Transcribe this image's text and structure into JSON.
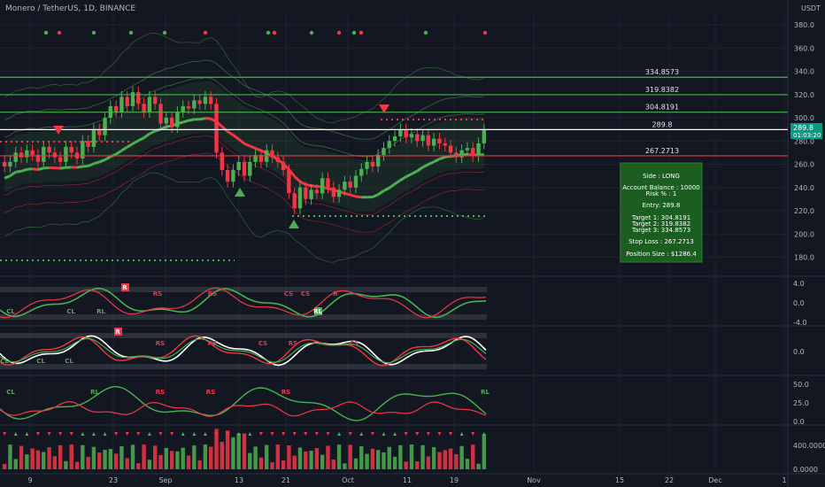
{
  "header": {
    "symbol_line": "Monero / TetherUS, 1D, BINANCE",
    "currency": "USDT"
  },
  "price_axis": {
    "ticks": [
      "380.0",
      "360.0",
      "340.0",
      "320.0",
      "300.0",
      "280.0",
      "260.0",
      "240.0",
      "220.0",
      "200.0",
      "180.0"
    ],
    "tick_values": [
      380,
      360,
      340,
      320,
      300,
      280,
      260,
      240,
      220,
      200,
      180
    ],
    "last_price": "289.8",
    "countdown": "01:03:20"
  },
  "time_axis": {
    "labels": [
      "9",
      "23",
      "Sep",
      "13",
      "21",
      "Oct",
      "11",
      "19",
      "Nov",
      "15",
      "22",
      "Dec",
      "1"
    ]
  },
  "levels": [
    {
      "label": "334.8573",
      "value": 334.8573,
      "color": "#4caf50"
    },
    {
      "label": "319.8382",
      "value": 319.8382,
      "color": "#4caf50"
    },
    {
      "label": "304.8191",
      "value": 304.8191,
      "color": "#4caf50"
    },
    {
      "label": "289.8",
      "value": 289.8,
      "color": "#ffffff"
    },
    {
      "label": "267.2713",
      "value": 267.2713,
      "color": "#f23645"
    }
  ],
  "info_box": {
    "side": "Side : LONG",
    "balance": "Account Balance : 10000",
    "risk": "Risk % : 1",
    "entry": "Entry: 289.8",
    "t1": "Target 1: 304.8191",
    "t2": "Target 2: 319.8382",
    "t3": "Target 3: 334.8573",
    "stop": "Stop Loss : 267.2713",
    "size": "Position Size : $1286.4"
  },
  "osc1_axis": [
    "4.0",
    "0.0",
    "-4.0"
  ],
  "osc2_axis": [
    "0.0"
  ],
  "osc3_axis": [
    "50.0",
    "25.0",
    "0.0"
  ],
  "vol_axis": [
    "400.0000",
    "0.0000"
  ],
  "signal_labels": {
    "osc1": [
      "CL",
      "CL",
      "RL",
      "R",
      "RS",
      "RS",
      "CS",
      "CS",
      "R",
      "RL"
    ],
    "osc2": [
      "CL",
      "CL",
      "CL",
      "R",
      "RS",
      "RS",
      "CS",
      "RS",
      "CS"
    ],
    "osc3": [
      "CL",
      "RL",
      "RS",
      "RS",
      "RS",
      "RL"
    ]
  },
  "chart_data": {
    "type": "candlestick",
    "title": "Monero / TetherUS, 1D, BINANCE",
    "x_start": "2021-08-01",
    "x_end": "2021-10-24",
    "ylim": [
      165,
      390
    ],
    "candles_close": [
      258,
      262,
      270,
      266,
      272,
      268,
      262,
      275,
      270,
      266,
      262,
      275,
      270,
      265,
      280,
      275,
      290,
      285,
      300,
      310,
      305,
      318,
      310,
      322,
      312,
      305,
      318,
      312,
      295,
      300,
      292,
      305,
      310,
      308,
      315,
      312,
      318,
      312,
      270,
      255,
      245,
      255,
      262,
      250,
      262,
      268,
      262,
      272,
      266,
      262,
      255,
      235,
      222,
      240,
      230,
      238,
      235,
      248,
      240,
      232,
      238,
      245,
      240,
      250,
      256,
      262,
      258,
      268,
      274,
      280,
      284,
      290,
      283,
      286,
      280,
      285,
      276,
      282,
      278,
      276,
      270,
      266,
      272,
      274,
      267,
      278,
      290
    ],
    "candles_open": [
      262,
      258,
      262,
      270,
      266,
      272,
      268,
      262,
      275,
      270,
      266,
      262,
      275,
      270,
      265,
      280,
      275,
      290,
      285,
      300,
      310,
      305,
      318,
      310,
      322,
      312,
      305,
      318,
      312,
      295,
      300,
      292,
      305,
      310,
      308,
      315,
      312,
      318,
      312,
      270,
      255,
      245,
      255,
      262,
      250,
      262,
      268,
      262,
      272,
      266,
      262,
      255,
      235,
      222,
      240,
      230,
      238,
      235,
      248,
      240,
      232,
      238,
      245,
      240,
      250,
      256,
      262,
      258,
      268,
      274,
      280,
      284,
      290,
      283,
      286,
      280,
      285,
      276,
      282,
      278,
      276,
      270,
      266,
      272,
      274,
      267,
      278
    ]
  }
}
